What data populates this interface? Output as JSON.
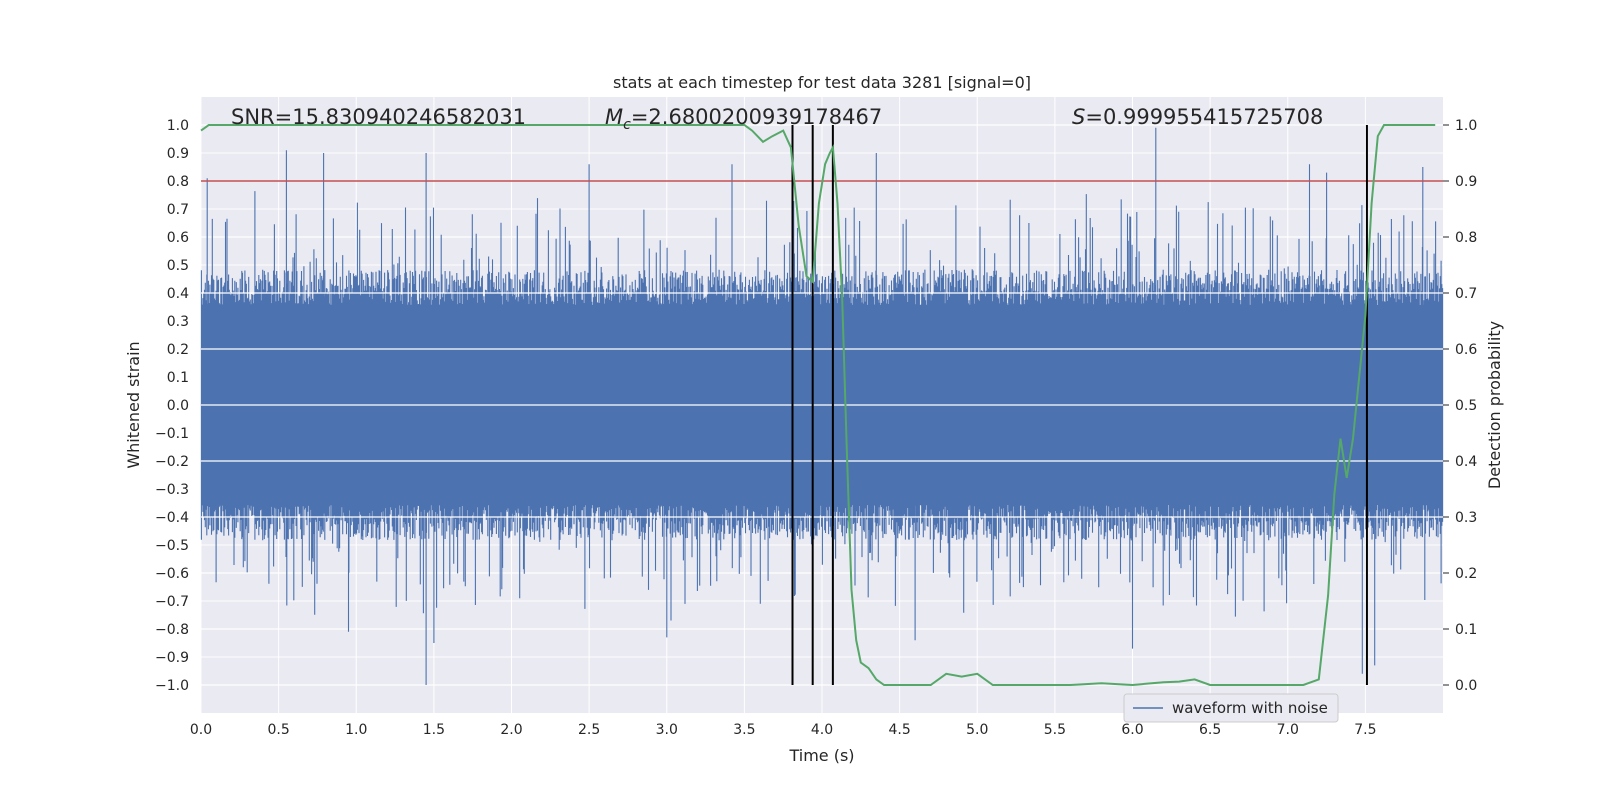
{
  "chart_data": {
    "type": "line",
    "title": "stats at each timestep for test data 3281 [signal=0]",
    "xlabel": "Time (s)",
    "ylabel_left": "Whitened strain",
    "ylabel_right": "Detection probability",
    "xlim": [
      0.0,
      8.0
    ],
    "ylim_left": [
      -1.1,
      1.1
    ],
    "ylim_right": [
      -0.05,
      1.05
    ],
    "x_ticks": [
      "0.0",
      "0.5",
      "1.0",
      "1.5",
      "2.0",
      "2.5",
      "3.0",
      "3.5",
      "4.0",
      "4.5",
      "5.0",
      "5.5",
      "6.0",
      "6.5",
      "7.0",
      "7.5"
    ],
    "y_ticks_left": [
      "1.0",
      "0.9",
      "0.8",
      "0.7",
      "0.6",
      "0.5",
      "0.4",
      "0.3",
      "0.2",
      "0.1",
      "0.0",
      "-0.1",
      "-0.2",
      "-0.3",
      "-0.4",
      "-0.5",
      "-0.6",
      "-0.7",
      "-0.8",
      "-0.9",
      "-1.0"
    ],
    "y_ticks_right": [
      "1.0",
      "0.9",
      "0.8",
      "0.7",
      "0.6",
      "0.5",
      "0.4",
      "0.3",
      "0.2",
      "0.1",
      "0.0"
    ],
    "annotations": {
      "snr": "SNR=15.830940246582031",
      "mc_symbol": "M",
      "mc_sub": "c",
      "mc_value": "=2.6800200939178467",
      "s_symbol": "S",
      "s_value": "=0.999955415725708"
    },
    "legend": {
      "label": "waveform with noise",
      "position": "lower-right"
    },
    "threshold": {
      "value": 0.9,
      "axis": "right",
      "color": "#c44e52"
    },
    "vertical_lines_x": [
      3.81,
      3.94,
      4.07,
      7.51
    ],
    "vertical_lines_range": [
      -1.0,
      1.0
    ],
    "noise_waveform": {
      "name": "waveform with noise",
      "color": "#4c72b0",
      "duration_s": 8.0,
      "typical_envelope": 0.42,
      "max_peak": 1.0,
      "min_peak": -1.0,
      "notable_peaks": [
        {
          "x": 0.04,
          "y": 0.81
        },
        {
          "x": 0.55,
          "y": 0.91
        },
        {
          "x": 0.79,
          "y": 0.9
        },
        {
          "x": 1.45,
          "y": 0.9
        },
        {
          "x": 2.5,
          "y": 0.86
        },
        {
          "x": 3.42,
          "y": 0.86
        },
        {
          "x": 4.35,
          "y": 0.9
        },
        {
          "x": 6.15,
          "y": 0.99
        },
        {
          "x": 7.14,
          "y": 0.86
        },
        {
          "x": 7.25,
          "y": 0.83
        },
        {
          "x": 7.87,
          "y": 0.85
        },
        {
          "x": 0.95,
          "y": -0.81
        },
        {
          "x": 1.45,
          "y": -1.0
        },
        {
          "x": 1.5,
          "y": -0.85
        },
        {
          "x": 3.0,
          "y": -0.83
        },
        {
          "x": 4.6,
          "y": -0.84
        },
        {
          "x": 6.0,
          "y": -0.87
        },
        {
          "x": 7.48,
          "y": -0.96
        },
        {
          "x": 7.56,
          "y": -0.93
        }
      ]
    },
    "probability_series": {
      "name": "Detection probability",
      "color": "#55a868",
      "x": [
        0.0,
        0.05,
        0.1,
        0.5,
        1.0,
        1.5,
        2.0,
        2.5,
        3.0,
        3.4,
        3.5,
        3.55,
        3.62,
        3.68,
        3.75,
        3.8,
        3.85,
        3.9,
        3.94,
        3.98,
        4.02,
        4.05,
        4.07,
        4.1,
        4.13,
        4.16,
        4.19,
        4.22,
        4.25,
        4.3,
        4.35,
        4.4,
        4.5,
        4.6,
        4.7,
        4.8,
        4.9,
        5.0,
        5.1,
        5.2,
        5.4,
        5.6,
        5.8,
        6.0,
        6.2,
        6.3,
        6.4,
        6.5,
        6.6,
        6.8,
        7.0,
        7.1,
        7.2,
        7.26,
        7.3,
        7.34,
        7.38,
        7.42,
        7.46,
        7.5,
        7.54,
        7.58,
        7.62,
        7.7,
        7.8,
        7.95
      ],
      "y": [
        0.99,
        1.0,
        1.0,
        1.0,
        1.0,
        1.0,
        1.0,
        1.0,
        1.0,
        1.0,
        1.0,
        0.99,
        0.97,
        0.98,
        0.99,
        0.96,
        0.82,
        0.73,
        0.72,
        0.86,
        0.93,
        0.95,
        0.96,
        0.86,
        0.69,
        0.42,
        0.17,
        0.08,
        0.04,
        0.03,
        0.01,
        0.0,
        0.0,
        0.0,
        0.0,
        0.02,
        0.015,
        0.02,
        0.0,
        0.0,
        0.0,
        0.0,
        0.003,
        0.0,
        0.005,
        0.006,
        0.01,
        0.0,
        0.0,
        0.0,
        0.0,
        0.0,
        0.01,
        0.16,
        0.34,
        0.44,
        0.37,
        0.44,
        0.55,
        0.66,
        0.86,
        0.98,
        1.0,
        1.0,
        1.0,
        1.0
      ]
    }
  }
}
